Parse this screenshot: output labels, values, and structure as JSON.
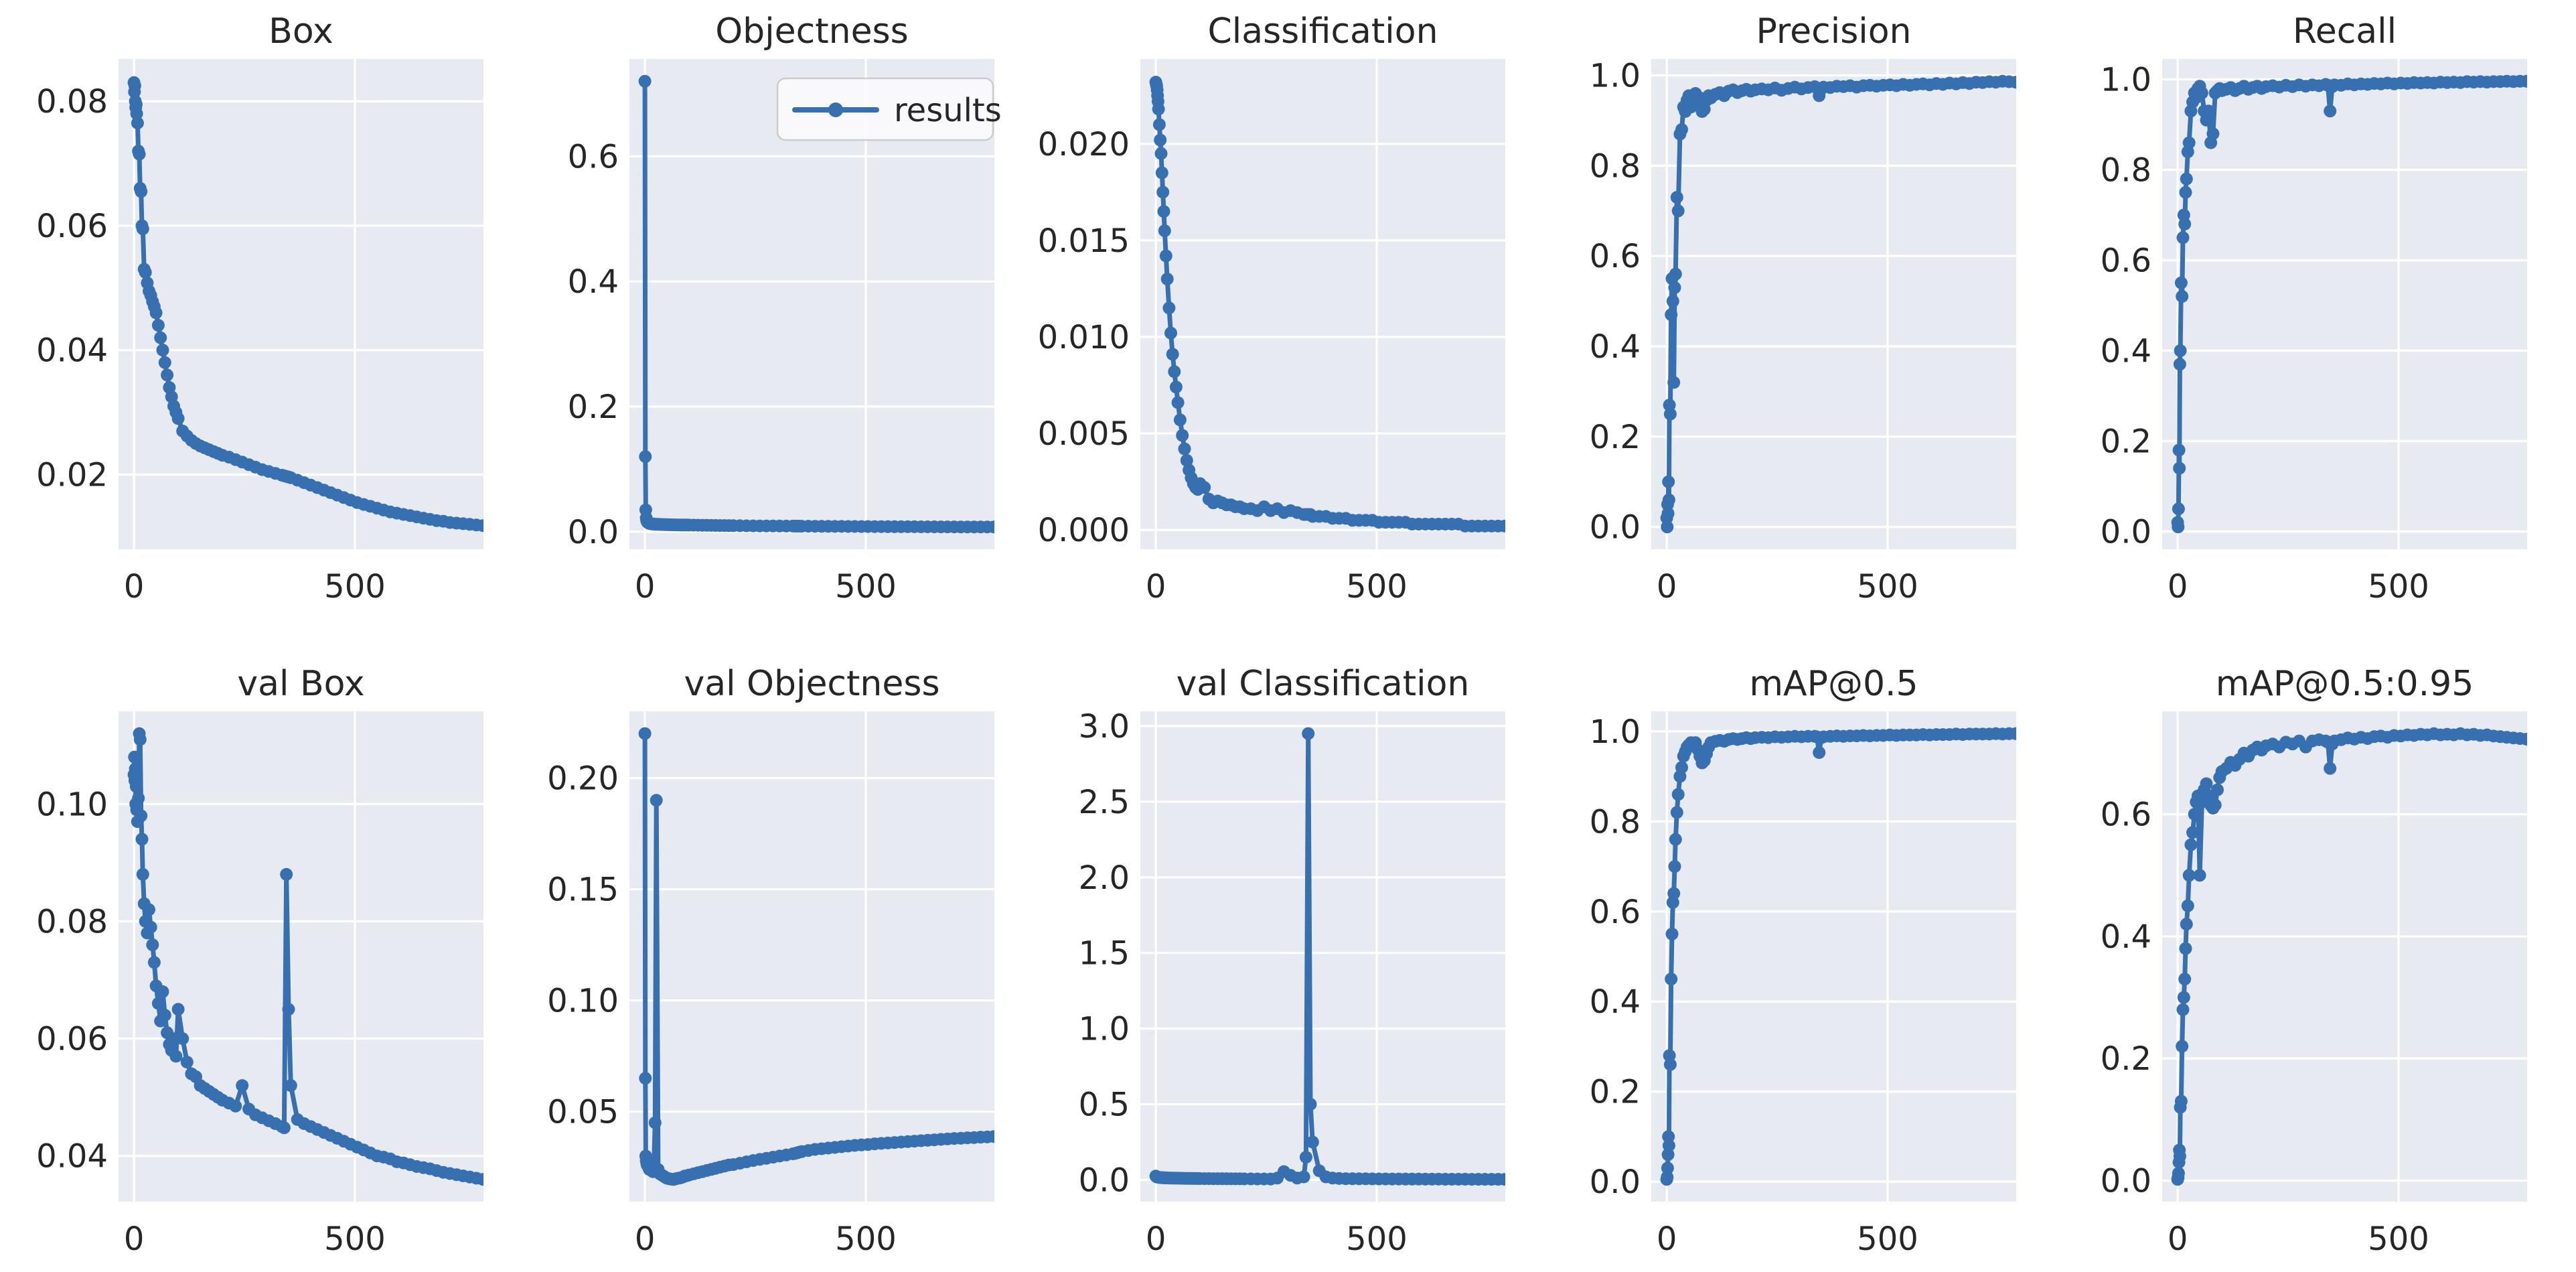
{
  "figure": {
    "background": "#ffffff",
    "axes_background": "#e8eaf2",
    "grid_color": "#ffffff",
    "line_color": "#3670b0",
    "text_color": "#262626",
    "legend": {
      "label": "results",
      "frame_fill": "#fbfbfd",
      "frame_border": "#cccccc"
    }
  },
  "layout": {
    "rows": 2,
    "cols": 5,
    "xlim": [
      -35,
      791
    ],
    "xticks": [
      0,
      500
    ],
    "xtick_labels": [
      "0",
      "500"
    ],
    "grid": true,
    "legend_position": "upper-right-of-objectness"
  },
  "epochs": [
    0,
    1,
    2,
    3,
    4,
    5,
    6,
    8,
    10,
    12,
    14,
    16,
    18,
    20,
    23,
    26,
    30,
    34,
    38,
    42,
    46,
    50,
    55,
    60,
    65,
    70,
    75,
    80,
    85,
    90,
    95,
    100,
    110,
    120,
    130,
    140,
    150,
    160,
    170,
    180,
    190,
    200,
    215,
    230,
    245,
    260,
    275,
    290,
    305,
    320,
    335,
    340,
    345,
    350,
    355,
    370,
    385,
    400,
    415,
    430,
    445,
    460,
    475,
    490,
    505,
    520,
    535,
    550,
    565,
    580,
    595,
    610,
    625,
    640,
    655,
    670,
    685,
    700,
    715,
    730,
    745,
    760,
    775,
    790
  ],
  "chart_data": [
    {
      "type": "line",
      "title": "Box",
      "series_name": "results",
      "ylim": [
        0.008,
        0.0868
      ],
      "yticks": [
        0.02,
        0.04,
        0.06,
        0.08
      ],
      "ytick_labels": [
        "0.02",
        "0.04",
        "0.06",
        "0.08"
      ],
      "values": [
        0.083,
        0.0815,
        0.0825,
        0.08,
        0.079,
        0.0795,
        0.078,
        0.0765,
        0.072,
        0.0715,
        0.066,
        0.0655,
        0.06,
        0.0595,
        0.053,
        0.0525,
        0.0508,
        0.0495,
        0.0488,
        0.0478,
        0.047,
        0.046,
        0.044,
        0.042,
        0.04,
        0.038,
        0.036,
        0.034,
        0.0325,
        0.031,
        0.03,
        0.029,
        0.027,
        0.0262,
        0.0255,
        0.025,
        0.0246,
        0.0243,
        0.024,
        0.0237,
        0.0234,
        0.0231,
        0.0228,
        0.0224,
        0.022,
        0.0216,
        0.0212,
        0.0208,
        0.0205,
        0.0202,
        0.0199,
        0.0198,
        0.0197,
        0.0196,
        0.0195,
        0.0191,
        0.0187,
        0.0183,
        0.0179,
        0.0175,
        0.0171,
        0.0167,
        0.0163,
        0.0159,
        0.0155,
        0.0152,
        0.0149,
        0.0146,
        0.0143,
        0.014,
        0.0138,
        0.0136,
        0.0134,
        0.0132,
        0.013,
        0.0128,
        0.0126,
        0.0125,
        0.0123,
        0.0122,
        0.0121,
        0.012,
        0.0119,
        0.0118
      ]
    },
    {
      "type": "line",
      "title": "Objectness",
      "series_name": "results",
      "show_legend": true,
      "ylim": [
        -0.028,
        0.7556
      ],
      "yticks": [
        0.0,
        0.2,
        0.4,
        0.6
      ],
      "ytick_labels": [
        "0.0",
        "0.2",
        "0.4",
        "0.6"
      ],
      "values": [
        0.72,
        0.12,
        0.035,
        0.022,
        0.018,
        0.016,
        0.015,
        0.014,
        0.0135,
        0.013,
        0.0128,
        0.0126,
        0.0124,
        0.0122,
        0.012,
        0.0119,
        0.0118,
        0.0117,
        0.0116,
        0.0115,
        0.0114,
        0.0113,
        0.0112,
        0.0111,
        0.011,
        0.011,
        0.0109,
        0.0108,
        0.0108,
        0.0107,
        0.0107,
        0.0106,
        0.0105,
        0.0104,
        0.0103,
        0.0102,
        0.0101,
        0.01,
        0.0099,
        0.0099,
        0.0098,
        0.0097,
        0.0096,
        0.0095,
        0.0094,
        0.0093,
        0.0093,
        0.0092,
        0.0091,
        0.009,
        0.009,
        0.0089,
        0.0089,
        0.0089,
        0.0088,
        0.0088,
        0.0087,
        0.0086,
        0.0086,
        0.0085,
        0.0085,
        0.0084,
        0.0084,
        0.0083,
        0.0083,
        0.0082,
        0.0082,
        0.0081,
        0.0081,
        0.008,
        0.008,
        0.008,
        0.0079,
        0.0079,
        0.0079,
        0.0078,
        0.0078,
        0.0078,
        0.0077,
        0.0077,
        0.0077,
        0.0076,
        0.0076,
        0.0076
      ]
    },
    {
      "type": "line",
      "title": "Classification",
      "series_name": "results",
      "ylim": [
        -0.001,
        0.0244
      ],
      "yticks": [
        0.0,
        0.005,
        0.01,
        0.015,
        0.02
      ],
      "ytick_labels": [
        "0.000",
        "0.005",
        "0.010",
        "0.015",
        "0.020"
      ],
      "values": [
        0.0232,
        0.0231,
        0.023,
        0.0228,
        0.0225,
        0.0222,
        0.0218,
        0.021,
        0.0202,
        0.0195,
        0.0185,
        0.0175,
        0.0165,
        0.0155,
        0.0142,
        0.013,
        0.0115,
        0.0102,
        0.0091,
        0.0082,
        0.0074,
        0.0066,
        0.0057,
        0.0049,
        0.0042,
        0.0036,
        0.0031,
        0.0027,
        0.0024,
        0.0022,
        0.0021,
        0.0024,
        0.0022,
        0.0016,
        0.0014,
        0.0015,
        0.0014,
        0.0013,
        0.0013,
        0.0012,
        0.0012,
        0.0011,
        0.0011,
        0.001,
        0.0012,
        0.001,
        0.0011,
        0.0009,
        0.001,
        0.0009,
        0.0008,
        0.0008,
        0.0008,
        0.0008,
        0.0007,
        0.0007,
        0.0007,
        0.0006,
        0.0006,
        0.0006,
        0.0005,
        0.0005,
        0.0005,
        0.0005,
        0.0004,
        0.0004,
        0.0004,
        0.0004,
        0.0004,
        0.0003,
        0.0003,
        0.0003,
        0.0003,
        0.0003,
        0.0003,
        0.0003,
        0.0003,
        0.0002,
        0.0002,
        0.0002,
        0.0002,
        0.0002,
        0.0002,
        0.0002
      ]
    },
    {
      "type": "line",
      "title": "Precision",
      "series_name": "results",
      "ylim": [
        -0.0494,
        1.0364
      ],
      "yticks": [
        0.0,
        0.2,
        0.4,
        0.6,
        0.8,
        1.0
      ],
      "ytick_labels": [
        "0.0",
        "0.2",
        "0.4",
        "0.6",
        "0.8",
        "1.0"
      ],
      "values": [
        0.02,
        0.0,
        0.05,
        0.03,
        0.1,
        0.06,
        0.27,
        0.25,
        0.47,
        0.55,
        0.5,
        0.32,
        0.53,
        0.56,
        0.73,
        0.7,
        0.87,
        0.88,
        0.93,
        0.92,
        0.945,
        0.955,
        0.93,
        0.955,
        0.96,
        0.94,
        0.95,
        0.92,
        0.925,
        0.945,
        0.955,
        0.95,
        0.958,
        0.962,
        0.955,
        0.965,
        0.968,
        0.962,
        0.966,
        0.969,
        0.965,
        0.968,
        0.97,
        0.968,
        0.972,
        0.967,
        0.971,
        0.974,
        0.97,
        0.973,
        0.975,
        0.972,
        0.955,
        0.97,
        0.974,
        0.973,
        0.976,
        0.975,
        0.977,
        0.974,
        0.977,
        0.978,
        0.976,
        0.978,
        0.979,
        0.977,
        0.98,
        0.978,
        0.98,
        0.981,
        0.979,
        0.982,
        0.98,
        0.983,
        0.981,
        0.984,
        0.982,
        0.985,
        0.984,
        0.986,
        0.985,
        0.987,
        0.986,
        0.985
      ]
    },
    {
      "type": "line",
      "title": "Recall",
      "series_name": "results",
      "ylim": [
        -0.0393,
        1.0453
      ],
      "yticks": [
        0.0,
        0.2,
        0.4,
        0.6,
        0.8,
        1.0
      ],
      "ytick_labels": [
        "0.0",
        "0.2",
        "0.4",
        "0.6",
        "0.8",
        "1.0"
      ],
      "values": [
        0.02,
        0.01,
        0.05,
        0.18,
        0.14,
        0.37,
        0.4,
        0.55,
        0.52,
        0.65,
        0.7,
        0.68,
        0.75,
        0.78,
        0.84,
        0.86,
        0.93,
        0.95,
        0.97,
        0.96,
        0.98,
        0.985,
        0.97,
        0.93,
        0.91,
        0.93,
        0.86,
        0.88,
        0.97,
        0.975,
        0.98,
        0.975,
        0.978,
        0.982,
        0.975,
        0.98,
        0.985,
        0.978,
        0.982,
        0.985,
        0.98,
        0.984,
        0.986,
        0.983,
        0.987,
        0.984,
        0.988,
        0.985,
        0.988,
        0.986,
        0.989,
        0.987,
        0.93,
        0.984,
        0.988,
        0.987,
        0.99,
        0.988,
        0.99,
        0.989,
        0.991,
        0.99,
        0.992,
        0.99,
        0.992,
        0.991,
        0.993,
        0.992,
        0.993,
        0.992,
        0.994,
        0.993,
        0.994,
        0.993,
        0.995,
        0.994,
        0.995,
        0.994,
        0.995,
        0.995,
        0.996,
        0.995,
        0.996,
        0.996
      ]
    },
    {
      "type": "line",
      "title": "val Box",
      "series_name": "results",
      "ylim": [
        0.0322,
        0.1158
      ],
      "yticks": [
        0.04,
        0.06,
        0.08,
        0.1
      ],
      "ytick_labels": [
        "0.04",
        "0.06",
        "0.08",
        "0.10"
      ],
      "values": [
        0.105,
        0.108,
        0.104,
        0.106,
        0.1,
        0.103,
        0.099,
        0.097,
        0.101,
        0.112,
        0.111,
        0.098,
        0.094,
        0.088,
        0.083,
        0.08,
        0.078,
        0.082,
        0.079,
        0.076,
        0.073,
        0.069,
        0.066,
        0.063,
        0.068,
        0.064,
        0.061,
        0.059,
        0.058,
        0.06,
        0.057,
        0.065,
        0.06,
        0.056,
        0.054,
        0.0535,
        0.052,
        0.0515,
        0.051,
        0.0505,
        0.05,
        0.0495,
        0.049,
        0.0485,
        0.052,
        0.048,
        0.047,
        0.0465,
        0.046,
        0.0455,
        0.045,
        0.0448,
        0.088,
        0.065,
        0.052,
        0.0462,
        0.0455,
        0.045,
        0.0445,
        0.044,
        0.0435,
        0.043,
        0.0425,
        0.042,
        0.0415,
        0.041,
        0.0405,
        0.04,
        0.0398,
        0.0395,
        0.039,
        0.0388,
        0.0385,
        0.0382,
        0.038,
        0.0378,
        0.0375,
        0.0372,
        0.037,
        0.0368,
        0.0366,
        0.0364,
        0.0362,
        0.036
      ]
    },
    {
      "type": "line",
      "title": "val Objectness",
      "series_name": "results",
      "ylim": [
        0.0095,
        0.23
      ],
      "yticks": [
        0.05,
        0.1,
        0.15,
        0.2
      ],
      "ytick_labels": [
        "0.05",
        "0.10",
        "0.15",
        "0.20"
      ],
      "values": [
        0.22,
        0.065,
        0.03,
        0.028,
        0.027,
        0.026,
        0.028,
        0.025,
        0.024,
        0.026,
        0.025,
        0.024,
        0.023,
        0.0235,
        0.045,
        0.19,
        0.024,
        0.022,
        0.0215,
        0.021,
        0.0205,
        0.02,
        0.0198,
        0.0196,
        0.0195,
        0.0198,
        0.02,
        0.0202,
        0.0205,
        0.021,
        0.0212,
        0.0215,
        0.022,
        0.0225,
        0.023,
        0.0235,
        0.024,
        0.0245,
        0.025,
        0.0255,
        0.026,
        0.0262,
        0.0268,
        0.0274,
        0.028,
        0.0285,
        0.029,
        0.0295,
        0.03,
        0.0305,
        0.031,
        0.0312,
        0.0315,
        0.0318,
        0.032,
        0.0325,
        0.033,
        0.0333,
        0.0336,
        0.0339,
        0.0342,
        0.0345,
        0.0348,
        0.035,
        0.0352,
        0.0355,
        0.0357,
        0.0359,
        0.0361,
        0.0363,
        0.0365,
        0.0367,
        0.0369,
        0.0371,
        0.0373,
        0.0375,
        0.0377,
        0.0379,
        0.038,
        0.0382,
        0.0383,
        0.0385,
        0.0386,
        0.0388
      ]
    },
    {
      "type": "line",
      "title": "val Classification",
      "series_name": "results",
      "ylim": [
        -0.144,
        3.097
      ],
      "yticks": [
        0.0,
        0.5,
        1.0,
        1.5,
        2.0,
        2.5,
        3.0
      ],
      "ytick_labels": [
        "0.0",
        "0.5",
        "1.0",
        "1.5",
        "2.0",
        "2.5",
        "3.0"
      ],
      "values": [
        0.025,
        0.022,
        0.02,
        0.019,
        0.018,
        0.0175,
        0.017,
        0.016,
        0.0155,
        0.015,
        0.0145,
        0.014,
        0.0138,
        0.0135,
        0.013,
        0.0128,
        0.0125,
        0.012,
        0.0118,
        0.0115,
        0.0112,
        0.011,
        0.0108,
        0.0105,
        0.0103,
        0.01,
        0.0098,
        0.0096,
        0.0094,
        0.0092,
        0.009,
        0.0088,
        0.0085,
        0.0082,
        0.008,
        0.0078,
        0.0076,
        0.0074,
        0.0072,
        0.007,
        0.0068,
        0.0066,
        0.0064,
        0.0062,
        0.006,
        0.0058,
        0.012,
        0.055,
        0.03,
        0.012,
        0.02,
        0.15,
        2.95,
        0.5,
        0.25,
        0.06,
        0.02,
        0.012,
        0.009,
        0.008,
        0.0075,
        0.007,
        0.0068,
        0.0065,
        0.0063,
        0.006,
        0.0058,
        0.0056,
        0.0054,
        0.0052,
        0.005,
        0.0049,
        0.0048,
        0.0046,
        0.0045,
        0.0044,
        0.0043,
        0.0042,
        0.0041,
        0.004,
        0.0039,
        0.0038,
        0.0037,
        0.0036
      ]
    },
    {
      "type": "line",
      "title": "mAP@0.5",
      "series_name": "results",
      "ylim": [
        -0.0445,
        1.0445
      ],
      "yticks": [
        0.0,
        0.2,
        0.4,
        0.6,
        0.8,
        1.0
      ],
      "ytick_labels": [
        "0.0",
        "0.2",
        "0.4",
        "0.6",
        "0.8",
        "1.0"
      ],
      "values": [
        0.005,
        0.01,
        0.03,
        0.06,
        0.1,
        0.08,
        0.28,
        0.26,
        0.45,
        0.55,
        0.62,
        0.64,
        0.7,
        0.76,
        0.82,
        0.86,
        0.9,
        0.92,
        0.945,
        0.955,
        0.965,
        0.97,
        0.975,
        0.97,
        0.975,
        0.96,
        0.945,
        0.93,
        0.935,
        0.95,
        0.965,
        0.975,
        0.978,
        0.98,
        0.978,
        0.982,
        0.984,
        0.982,
        0.984,
        0.986,
        0.984,
        0.986,
        0.987,
        0.986,
        0.988,
        0.987,
        0.988,
        0.989,
        0.988,
        0.989,
        0.989,
        0.988,
        0.953,
        0.986,
        0.988,
        0.989,
        0.99,
        0.989,
        0.99,
        0.99,
        0.991,
        0.99,
        0.991,
        0.991,
        0.992,
        0.991,
        0.992,
        0.992,
        0.992,
        0.993,
        0.992,
        0.993,
        0.993,
        0.993,
        0.994,
        0.993,
        0.994,
        0.994,
        0.994,
        0.994,
        0.995,
        0.994,
        0.995,
        0.995
      ]
    },
    {
      "type": "line",
      "title": "mAP@0.5:0.95",
      "series_name": "results",
      "ylim": [
        -0.0345,
        0.7685
      ],
      "yticks": [
        0.0,
        0.2,
        0.4,
        0.6
      ],
      "ytick_labels": [
        "0.0",
        "0.2",
        "0.4",
        "0.6"
      ],
      "values": [
        0.002,
        0.005,
        0.012,
        0.03,
        0.05,
        0.04,
        0.12,
        0.13,
        0.22,
        0.28,
        0.3,
        0.33,
        0.38,
        0.42,
        0.45,
        0.5,
        0.55,
        0.57,
        0.6,
        0.62,
        0.63,
        0.5,
        0.62,
        0.64,
        0.65,
        0.63,
        0.615,
        0.61,
        0.615,
        0.64,
        0.66,
        0.67,
        0.675,
        0.685,
        0.68,
        0.69,
        0.7,
        0.695,
        0.705,
        0.71,
        0.705,
        0.712,
        0.715,
        0.71,
        0.718,
        0.715,
        0.72,
        0.71,
        0.72,
        0.722,
        0.72,
        0.718,
        0.675,
        0.715,
        0.72,
        0.722,
        0.725,
        0.723,
        0.726,
        0.724,
        0.727,
        0.728,
        0.726,
        0.729,
        0.728,
        0.73,
        0.729,
        0.731,
        0.73,
        0.732,
        0.73,
        0.731,
        0.73,
        0.732,
        0.73,
        0.731,
        0.729,
        0.73,
        0.728,
        0.727,
        0.726,
        0.725,
        0.724,
        0.723
      ]
    }
  ]
}
